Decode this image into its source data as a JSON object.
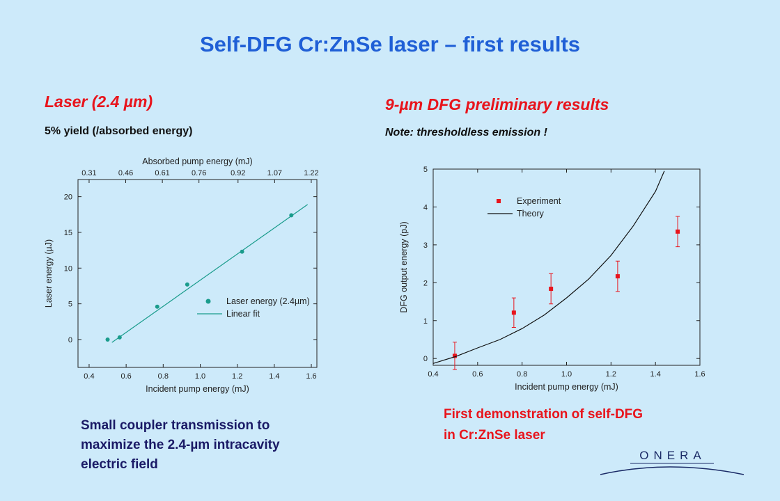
{
  "title": "Self-DFG Cr:ZnSe laser – first results",
  "left": {
    "heading": "Laser (2.4 µm)",
    "note": "5% yield (/absorbed energy)"
  },
  "right": {
    "heading": "9-µm DFG preliminary results",
    "note": "Note: thresholdless emission !"
  },
  "left_caption": [
    "Small coupler transmission to",
    "maximize the 2.4-µm intracavity",
    "electric field"
  ],
  "right_caption": [
    "First demonstration of self-DFG",
    "in Cr:ZnSe laser"
  ],
  "logo": "ONERA",
  "chart_data": [
    {
      "type": "scatter",
      "xlabel": "Incident pump energy (mJ)",
      "ylabel": "Laser energy (µJ)",
      "x2label": "Absorbed pump energy (mJ)",
      "xlim": [
        0.34,
        1.63
      ],
      "ylim": [
        -3.9,
        22.4
      ],
      "x2lim": [
        0.2645,
        1.243
      ],
      "xticks": [
        0.4,
        0.6,
        0.8,
        {
          "value": 1,
          "label": "1.0"
        },
        1.2,
        1.4,
        1.6
      ],
      "yticks": [
        0,
        5,
        10,
        15,
        20
      ],
      "x2ticks": [
        0.31,
        0.46,
        0.61,
        0.76,
        0.92,
        1.07,
        1.22
      ],
      "legend": "lower right",
      "series": [
        {
          "name": "Laser energy (2.4µm)",
          "mode": "markers",
          "color": "#1a9c8c",
          "x": [
            0.5,
            0.565,
            0.768,
            0.93,
            1.226,
            1.492
          ],
          "values": [
            0,
            0.3,
            4.6,
            7.7,
            12.3,
            17.4
          ]
        },
        {
          "name": "Linear fit",
          "mode": "line",
          "color": "#1a9c8c",
          "x": [
            0.523,
            1.58
          ],
          "values": [
            -0.4,
            18.9
          ]
        }
      ]
    },
    {
      "type": "scatter",
      "xlabel": "Incident pump energy (mJ)",
      "ylabel": "DFG output energy (pJ)",
      "xlim": [
        0.4,
        1.6
      ],
      "ylim": [
        -0.18,
        5
      ],
      "xticks": [
        0.4,
        0.6,
        0.8,
        {
          "value": 1,
          "label": "1.0"
        },
        1.2,
        1.4,
        1.6
      ],
      "yticks": [
        0,
        1,
        2,
        3,
        4,
        5
      ],
      "legend": "upper left",
      "series": [
        {
          "name": "Experiment",
          "mode": "markers",
          "color": "#e8141c",
          "x": [
            0.497,
            0.763,
            0.93,
            1.23,
            1.5
          ],
          "values": [
            0.07,
            1.21,
            1.84,
            2.17,
            3.35
          ],
          "errors": [
            0.36,
            0.39,
            0.4,
            0.4,
            0.4
          ]
        },
        {
          "name": "Theory",
          "mode": "line",
          "color": "#111111",
          "x": [
            0.4,
            0.5,
            0.6,
            0.7,
            0.8,
            0.9,
            1.0,
            1.1,
            1.2,
            1.3,
            1.4,
            1.44
          ],
          "values": [
            -0.13,
            0.05,
            0.28,
            0.5,
            0.79,
            1.15,
            1.6,
            2.1,
            2.72,
            3.5,
            4.41,
            4.95
          ]
        }
      ]
    }
  ]
}
